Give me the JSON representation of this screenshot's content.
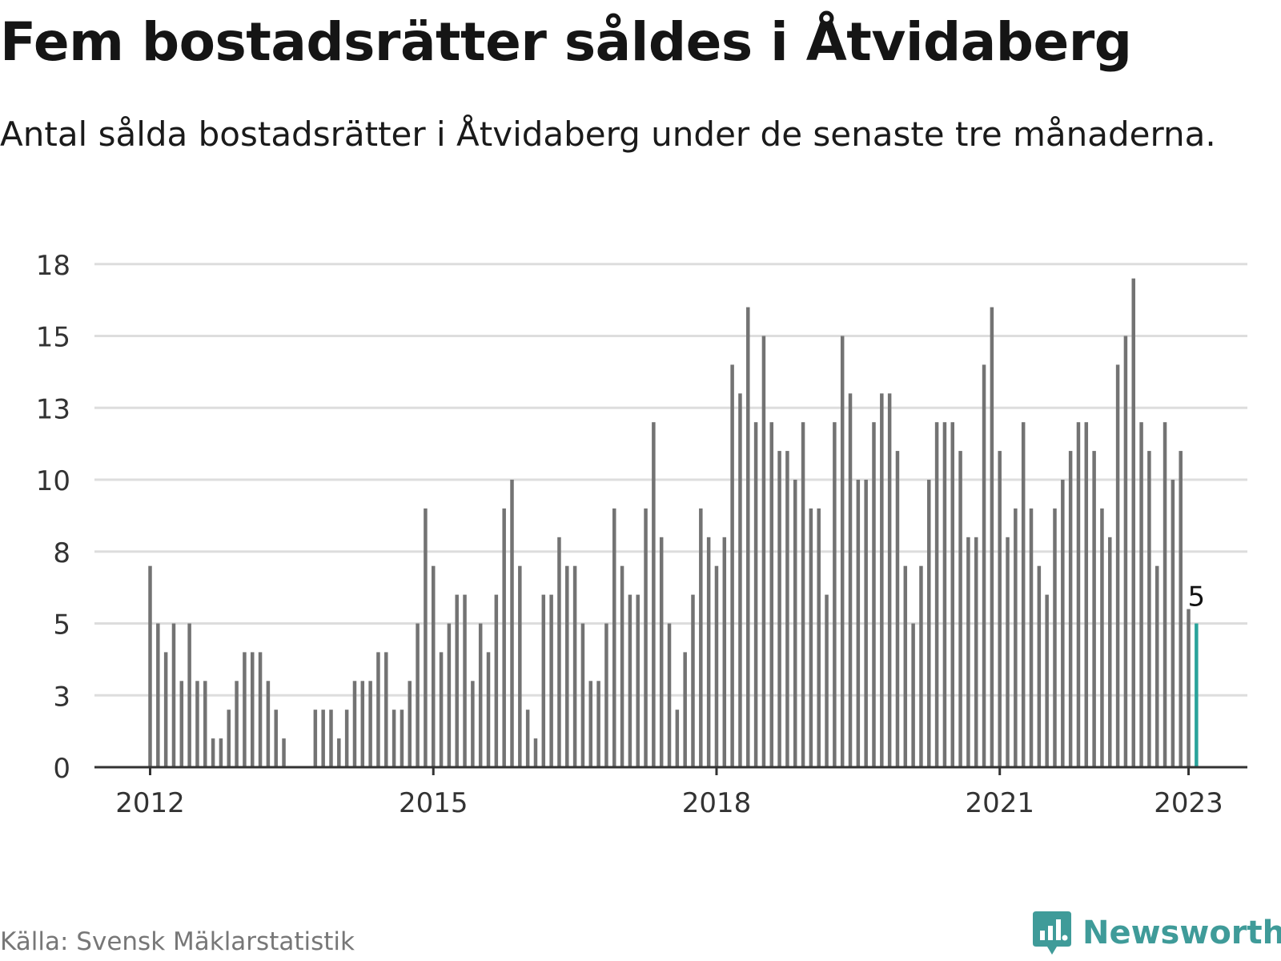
{
  "title": "Fem bostadsrätter såldes i Åtvidaberg",
  "subtitle": "Antal sålda bostadsrätter i Åtvidaberg under de senaste tre månaderna.",
  "source": "Källa: Svensk Mäklarstatistik",
  "brand": {
    "name": "Newsworthy",
    "icon": "newsworthy-logo-icon",
    "color": "#3f9b99"
  },
  "colors": {
    "bar": "#737373",
    "highlight": "#2aa39b",
    "grid": "#dddddd",
    "axis": "#333333",
    "tick_text": "#333333"
  },
  "chart_data": {
    "type": "bar",
    "title": "",
    "xlabel": "",
    "ylabel": "",
    "start": "2012-01",
    "x_tick_labels": [
      "2012",
      "2015",
      "2018",
      "2021",
      "2023"
    ],
    "y_tick_labels": [
      "0",
      "3",
      "5",
      "8",
      "10",
      "13",
      "15",
      "18"
    ],
    "ylim": [
      0,
      17.5
    ],
    "grid": true,
    "highlight_label": "5",
    "values": [
      7,
      5,
      4,
      5,
      3,
      5,
      3,
      3,
      1,
      1,
      2,
      3,
      4,
      4,
      4,
      3,
      2,
      1,
      0,
      0,
      0,
      2,
      2,
      2,
      1,
      2,
      3,
      3,
      3,
      4,
      4,
      2,
      2,
      3,
      5,
      9,
      7,
      4,
      5,
      6,
      6,
      3,
      5,
      4,
      6,
      9,
      10,
      7,
      2,
      1,
      6,
      6,
      8,
      7,
      7,
      5,
      3,
      3,
      5,
      9,
      7,
      6,
      6,
      9,
      12,
      8,
      5,
      2,
      4,
      6,
      9,
      8,
      7,
      8,
      14,
      13,
      16,
      12,
      15,
      12,
      11,
      11,
      10,
      12,
      9,
      9,
      6,
      12,
      15,
      13,
      10,
      10,
      12,
      13,
      13,
      11,
      7,
      5,
      7,
      10,
      12,
      12,
      12,
      11,
      8,
      8,
      14,
      16,
      11,
      8,
      9,
      12,
      9,
      7,
      6,
      9,
      10,
      11,
      12,
      12,
      11,
      9,
      8,
      14,
      15,
      17,
      12,
      11,
      7,
      12,
      10,
      11,
      5.5,
      5
    ]
  }
}
